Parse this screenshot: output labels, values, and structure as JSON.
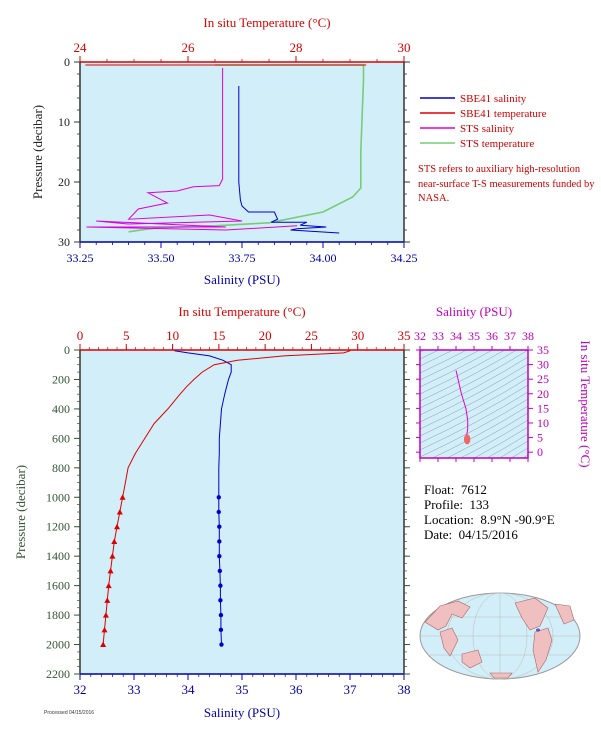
{
  "colors": {
    "background_panel": "#d2eef8",
    "salinity": "#0000cc",
    "temperature": "#dd0000",
    "sts_salinity": "#dd00dd",
    "sts_temperature": "#77cc77",
    "ts_salinity_axis": "#c000c0",
    "pressure_axis": "#333333"
  },
  "info": {
    "float_label": "Float:",
    "float_value": "7612",
    "profile_label": "Profile:",
    "profile_value": "133",
    "location_label": "Location:",
    "location_value": "8.9°N  -90.9°E",
    "date_label": "Date:",
    "date_value": "04/15/2016"
  },
  "note": "STS refers to auxiliary high-resolution near-surface T-S measurements funded by NASA.",
  "footer_text": "Processed 04/15/2016",
  "chart_data": [
    {
      "type": "line",
      "panel": "near-surface",
      "top_axis_label": "In situ Temperature (°C)",
      "bottom_axis_label": "Salinity (PSU)",
      "ylabel": "Pressure (decibar)",
      "xlim_temperature": [
        24,
        30
      ],
      "temperature_ticks": [
        "24",
        "26",
        "28",
        "30"
      ],
      "xlim_salinity": [
        33.25,
        34.25
      ],
      "salinity_ticks": [
        "33.25",
        "33.50",
        "33.75",
        "34.00",
        "34.25"
      ],
      "ylim": [
        0,
        30
      ],
      "y_ticks": [
        "0",
        "10",
        "20",
        "30"
      ],
      "legend_position": "right",
      "series": [
        {
          "name": "SBE41 salinity",
          "axis": "salinity",
          "x": [
            33.74,
            33.74,
            33.74,
            33.745,
            33.75,
            33.77,
            33.85,
            33.86,
            33.84,
            33.95,
            33.93,
            34.01,
            33.92,
            33.9,
            34.05
          ],
          "y": [
            4,
            10,
            20,
            23,
            24,
            25,
            25,
            26.2,
            26.7,
            26.7,
            27.2,
            27.5,
            27.8,
            28.0,
            28.5
          ]
        },
        {
          "name": "SBE41 temperature",
          "axis": "temperature",
          "x": [
            24.1,
            29.3
          ],
          "y": [
            0.5,
            0.5
          ]
        },
        {
          "name": "STS salinity",
          "axis": "salinity",
          "x": [
            33.69,
            33.69,
            33.69,
            33.68,
            33.6,
            33.55,
            33.46,
            33.52,
            33.43,
            33.4,
            33.65,
            33.75,
            33.4,
            33.3,
            33.7,
            33.27,
            33.7,
            33.92
          ],
          "y": [
            1,
            10,
            19.5,
            20.6,
            20.8,
            21.5,
            21.8,
            23.5,
            24.5,
            26.2,
            25.5,
            26.5,
            27,
            26.5,
            27.5,
            27.5,
            28.0,
            27.3
          ]
        },
        {
          "name": "STS temperature",
          "axis": "temperature",
          "x": [
            26.5,
            29.25,
            29.25,
            29.2,
            29.2,
            29.05,
            28.5,
            27.5,
            26.5,
            25.5,
            25.2,
            24.9
          ],
          "y": [
            0.5,
            0.5,
            3,
            15,
            21,
            22.5,
            25.0,
            26.8,
            27.3,
            27.6,
            27.9,
            28.3
          ]
        }
      ]
    },
    {
      "type": "line",
      "panel": "full-profile",
      "top_axis_label": "In situ Temperature (°C)",
      "bottom_axis_label": "Salinity (PSU)",
      "ylabel": "Pressure (decibar)",
      "xlim_temperature": [
        0,
        35
      ],
      "temperature_ticks": [
        "0",
        "5",
        "10",
        "15",
        "20",
        "25",
        "30",
        "35"
      ],
      "xlim_salinity": [
        32,
        38
      ],
      "salinity_ticks": [
        "32",
        "33",
        "34",
        "35",
        "36",
        "37",
        "38"
      ],
      "ylim": [
        0,
        2200
      ],
      "y_ticks": [
        "0",
        "200",
        "400",
        "600",
        "800",
        "1000",
        "1200",
        "1400",
        "1600",
        "1800",
        "2000",
        "2200"
      ],
      "series": [
        {
          "name": "salinity",
          "axis": "salinity",
          "pressure": [
            5,
            20,
            40,
            70,
            100,
            150,
            200,
            300,
            400,
            500,
            600,
            700,
            800,
            900,
            1000,
            1100,
            1200,
            1300,
            1400,
            1500,
            1600,
            1700,
            1800,
            1900,
            2000
          ],
          "values": [
            33.75,
            34.0,
            34.4,
            34.65,
            34.8,
            34.8,
            34.75,
            34.68,
            34.62,
            34.6,
            34.58,
            34.58,
            34.57,
            34.57,
            34.57,
            34.57,
            34.58,
            34.58,
            34.58,
            34.59,
            34.6,
            34.6,
            34.61,
            34.61,
            34.62
          ]
        },
        {
          "name": "temperature",
          "axis": "temperature",
          "pressure": [
            5,
            20,
            40,
            70,
            100,
            150,
            200,
            250,
            300,
            400,
            500,
            600,
            700,
            800,
            900,
            1000,
            1100,
            1200,
            1300,
            1400,
            1500,
            1600,
            1700,
            1800,
            1900,
            2000
          ],
          "values": [
            29.2,
            28.5,
            22.0,
            17.0,
            14.5,
            13.2,
            12.3,
            11.5,
            10.8,
            9.5,
            8.0,
            7.0,
            6.0,
            5.2,
            4.9,
            4.6,
            4.3,
            4.0,
            3.7,
            3.5,
            3.3,
            3.1,
            2.95,
            2.8,
            2.65,
            2.5
          ]
        }
      ]
    },
    {
      "type": "scatter",
      "panel": "t-s-diagram",
      "top_axis_label": "Salinity (PSU)",
      "right_axis_label": "In situ Temperature (°C)",
      "xlim": [
        32,
        38
      ],
      "x_ticks": [
        "32",
        "33",
        "34",
        "35",
        "36",
        "37",
        "38"
      ],
      "ylim": [
        -2,
        35
      ],
      "y_ticks": [
        "0",
        "5",
        "10",
        "15",
        "20",
        "25",
        "30",
        "35"
      ],
      "series": [
        {
          "name": "profile",
          "x": [
            34.0,
            34.3,
            34.55,
            34.65,
            34.65,
            34.6,
            34.58,
            34.6
          ],
          "y": [
            28,
            20,
            15,
            11,
            8,
            6,
            4.6,
            3.5
          ]
        }
      ]
    }
  ]
}
